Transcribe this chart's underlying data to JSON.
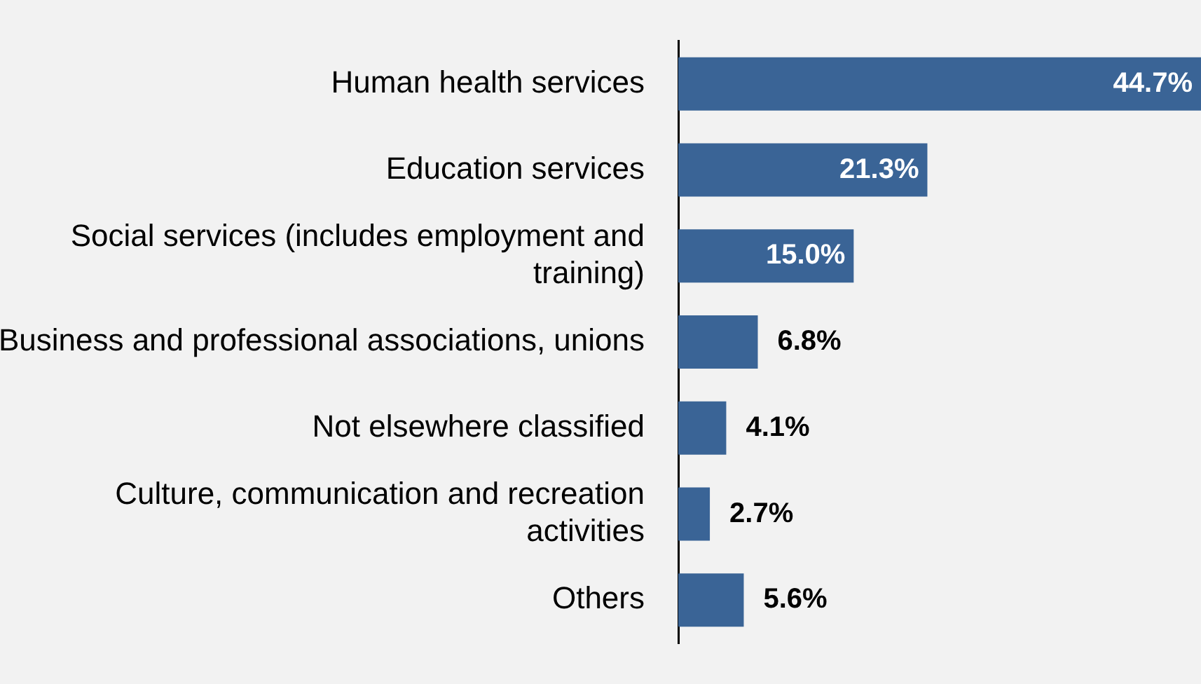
{
  "chart_data": {
    "type": "bar",
    "orientation": "horizontal",
    "categories": [
      "Human health services",
      "Education services",
      "Social services (includes employment and training)",
      "Business and professional associations, unions",
      "Not elsewhere classified",
      "Culture, communication and recreation activities",
      "Others"
    ],
    "values": [
      44.7,
      21.3,
      15.0,
      6.8,
      4.1,
      2.7,
      5.6
    ],
    "value_labels": [
      "44.7%",
      "21.3%",
      "15.0%",
      "6.8%",
      "4.1%",
      "2.7%",
      "5.6%"
    ],
    "color": "#3a6496",
    "legend": false
  }
}
